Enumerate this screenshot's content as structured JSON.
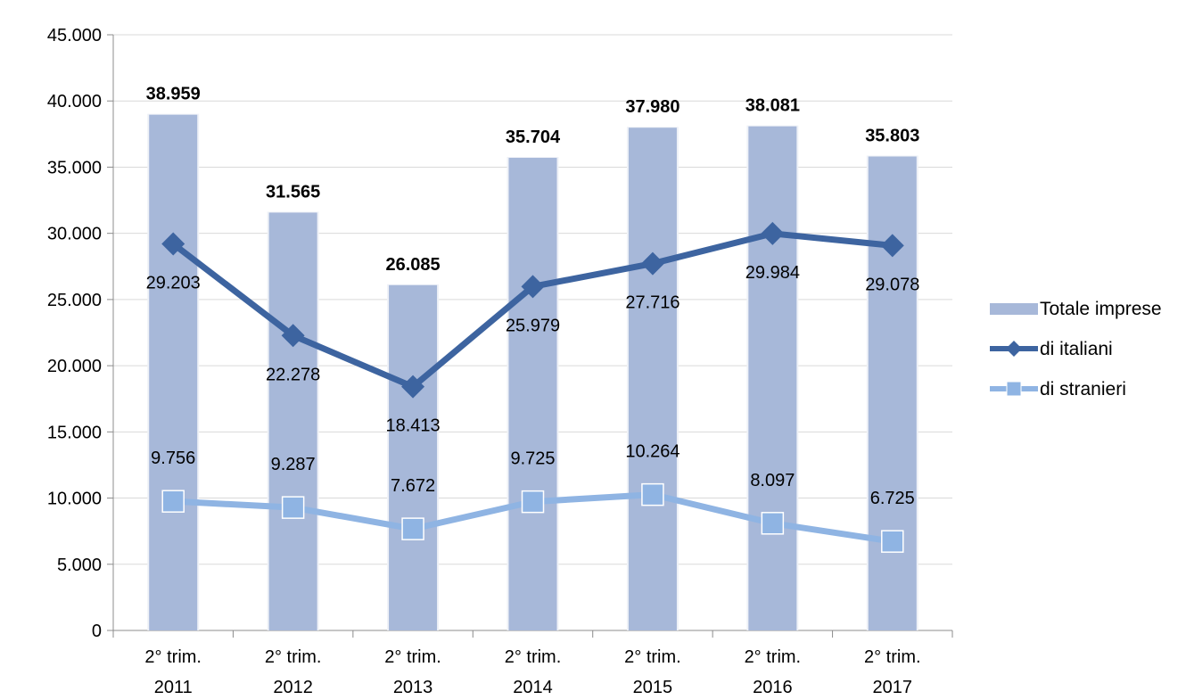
{
  "chart_data": {
    "type": "bar",
    "categories": [
      [
        "2° trim.",
        "2011"
      ],
      [
        "2° trim.",
        "2012"
      ],
      [
        "2° trim.",
        "2013"
      ],
      [
        "2° trim.",
        "2014"
      ],
      [
        "2° trim.",
        "2015"
      ],
      [
        "2° trim.",
        "2016"
      ],
      [
        "2° trim.",
        "2017"
      ]
    ],
    "series": [
      {
        "name": "Totale imprese",
        "type": "bar",
        "color": "#a7b8d9",
        "values": [
          38959,
          31565,
          26085,
          35704,
          37980,
          38081,
          35803
        ],
        "labels": [
          "38.959",
          "31.565",
          "26.085",
          "35.704",
          "37.980",
          "38.081",
          "35.803"
        ]
      },
      {
        "name": "di italiani",
        "type": "line",
        "marker": "diamond",
        "color": "#3d64a0",
        "values": [
          29203,
          22278,
          18413,
          25979,
          27716,
          29984,
          29078
        ],
        "labels": [
          "29.203",
          "22.278",
          "18.413",
          "25.979",
          "27.716",
          "29.984",
          "29.078"
        ]
      },
      {
        "name": "di stranieri",
        "type": "line",
        "marker": "square",
        "color": "#8fb4e3",
        "values": [
          9756,
          9287,
          7672,
          9725,
          10264,
          8097,
          6725
        ],
        "labels": [
          "9.756",
          "9.287",
          "7.672",
          "9.725",
          "10.264",
          "8.097",
          "6.725"
        ]
      }
    ],
    "ylim": [
      0,
      45000
    ],
    "yticks": [
      0,
      5000,
      10000,
      15000,
      20000,
      25000,
      30000,
      35000,
      40000,
      45000
    ],
    "ytick_labels": [
      "0",
      "5.000",
      "10.000",
      "15.000",
      "20.000",
      "25.000",
      "30.000",
      "35.000",
      "40.000",
      "45.000"
    ],
    "grid": true,
    "legend": "right"
  }
}
